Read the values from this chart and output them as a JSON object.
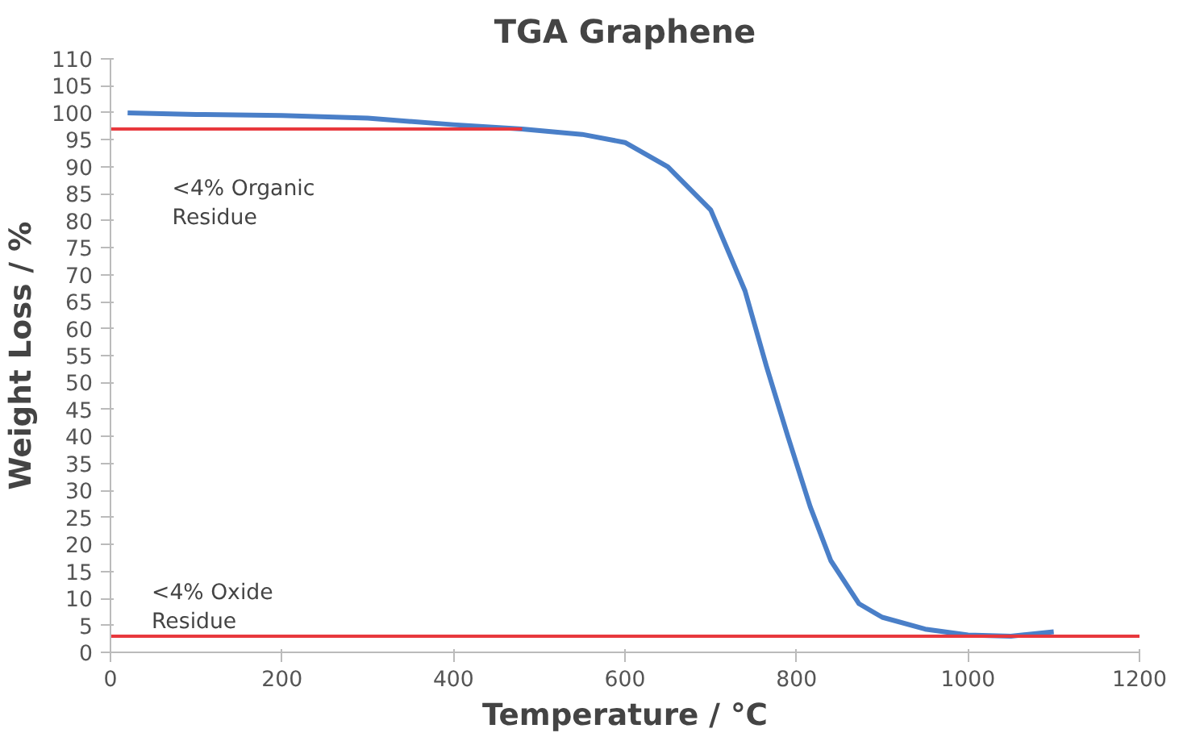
{
  "chart_data": {
    "type": "line",
    "title": "TGA Graphene",
    "xlabel": "Temperature / °C",
    "ylabel": "Weight Loss / %",
    "xlim": [
      0,
      1200
    ],
    "xticks": [
      0,
      200,
      400,
      600,
      800,
      1000,
      1200
    ],
    "ylim": [
      0,
      110
    ],
    "yticks": [
      0,
      5,
      10,
      15,
      20,
      25,
      30,
      35,
      40,
      45,
      50,
      55,
      60,
      65,
      70,
      75,
      80,
      85,
      90,
      95,
      100,
      105,
      110
    ],
    "grid": false,
    "marker": "none",
    "line_style": "solid",
    "series": [
      {
        "color": "#4a7fc8",
        "x": [
          20,
          100,
          200,
          300,
          400,
          480,
          550,
          600,
          650,
          700,
          740,
          765,
          790,
          816,
          840,
          873,
          900,
          950,
          1000,
          1050,
          1100
        ],
        "values": [
          100,
          99.7,
          99.5,
          99,
          97.8,
          97,
          96,
          94.5,
          90,
          82,
          67,
          53,
          40,
          27,
          17,
          9,
          6.5,
          4.3,
          3.2,
          3,
          3.8
        ]
      },
      {
        "color": "#e8383d",
        "x": [
          0,
          480
        ],
        "values": [
          97,
          97
        ]
      },
      {
        "color": "#e8383d",
        "x": [
          0,
          1200
        ],
        "values": [
          3,
          3
        ]
      }
    ],
    "annotations": [
      "<4% Organic\nResidue",
      "<4% Oxide\nResidue"
    ]
  }
}
